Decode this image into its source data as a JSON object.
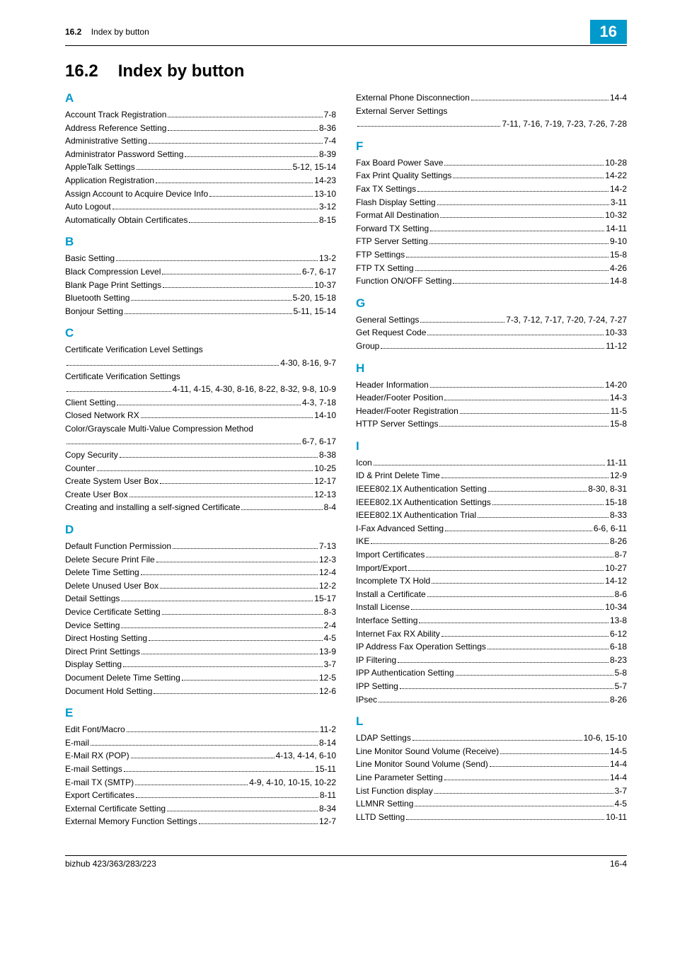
{
  "header": {
    "section_number": "16.2",
    "section_title": "Index by button",
    "chapter_number": "16"
  },
  "main_heading": {
    "number": "16.2",
    "title": "Index by button"
  },
  "left_groups": [
    {
      "letter": "A",
      "entries": [
        {
          "label": "Account Track Registration",
          "pages": "7-8"
        },
        {
          "label": "Address Reference Setting",
          "pages": "8-36"
        },
        {
          "label": "Administrative Setting",
          "pages": "7-4"
        },
        {
          "label": "Administrator Password Setting",
          "pages": "8-39"
        },
        {
          "label": "AppleTalk Settings",
          "pages": "5-12, 15-14"
        },
        {
          "label": "Application Registration",
          "pages": "14-23"
        },
        {
          "label": "Assign Account to Acquire Device Info",
          "pages": "13-10"
        },
        {
          "label": "Auto Logout",
          "pages": "3-12"
        },
        {
          "label": "Automatically Obtain Certificates",
          "pages": "8-15"
        }
      ]
    },
    {
      "letter": "B",
      "entries": [
        {
          "label": "Basic Setting",
          "pages": "13-2"
        },
        {
          "label": "Black Compression Level",
          "pages": "6-7, 6-17"
        },
        {
          "label": "Blank Page Print Settings",
          "pages": "10-37"
        },
        {
          "label": "Bluetooth Setting",
          "pages": "5-20, 15-18"
        },
        {
          "label": "Bonjour Setting",
          "pages": "5-11, 15-14"
        }
      ]
    },
    {
      "letter": "C",
      "entries": [
        {
          "label": "Certificate Verification Level Settings",
          "wrap": true,
          "cont_pages": "4-30, 8-16, 9-7"
        },
        {
          "label": "Certificate Verification Settings",
          "wrap": true,
          "cont_pre": " 4-11, 4-15, 4-30, 8-16, 8-22, 8-32, 9-8, 10-9"
        },
        {
          "label": "Client Setting",
          "pages": "4-3, 7-18"
        },
        {
          "label": "Closed Network RX",
          "pages": "14-10"
        },
        {
          "label": "Color/Grayscale Multi-Value Compression Method",
          "wrap": true,
          "cont_pages": "6-7, 6-17"
        },
        {
          "label": "Copy Security",
          "pages": "8-38"
        },
        {
          "label": "Counter",
          "pages": "10-25"
        },
        {
          "label": "Create System User Box",
          "pages": "12-17"
        },
        {
          "label": "Create User Box",
          "pages": "12-13"
        },
        {
          "label": "Creating and installing a self-signed Certificate",
          "pages": "8-4"
        }
      ]
    },
    {
      "letter": "D",
      "entries": [
        {
          "label": "Default Function Permission",
          "pages": "7-13"
        },
        {
          "label": "Delete Secure Print File",
          "pages": "12-3"
        },
        {
          "label": "Delete Time Setting",
          "pages": "12-4"
        },
        {
          "label": "Delete Unused User Box",
          "pages": "12-2"
        },
        {
          "label": "Detail Settings",
          "pages": "15-17"
        },
        {
          "label": "Device Certificate Setting",
          "pages": "8-3"
        },
        {
          "label": "Device Setting",
          "pages": "2-4"
        },
        {
          "label": "Direct Hosting Setting",
          "pages": "4-5"
        },
        {
          "label": "Direct Print Settings",
          "pages": "13-9"
        },
        {
          "label": "Display Setting",
          "pages": "3-7"
        },
        {
          "label": "Document Delete Time Setting",
          "pages": "12-5"
        },
        {
          "label": "Document Hold Setting",
          "pages": "12-6"
        }
      ]
    },
    {
      "letter": "E",
      "entries": [
        {
          "label": "Edit Font/Macro",
          "pages": "11-2"
        },
        {
          "label": "E-mail",
          "pages": "8-14"
        },
        {
          "label": "E-Mail RX (POP)",
          "pages": "4-13, 4-14, 6-10"
        },
        {
          "label": "E-mail Settings",
          "pages": "15-11"
        },
        {
          "label": "E-mail TX (SMTP)",
          "pages": " 4-9, 4-10, 10-15, 10-22"
        },
        {
          "label": "Export Certificates",
          "pages": "8-11"
        },
        {
          "label": "External Certificate Setting",
          "pages": "8-34"
        },
        {
          "label": "External Memory Function Settings",
          "pages": "12-7"
        }
      ]
    }
  ],
  "right_groups": [
    {
      "letter": "",
      "entries": [
        {
          "label": "External Phone Disconnection",
          "pages": "14-4"
        },
        {
          "label": "External Server Settings",
          "wrap": true,
          "cont_pre": " 7-11, 7-16, 7-19, 7-23, 7-26, 7-28"
        }
      ]
    },
    {
      "letter": "F",
      "entries": [
        {
          "label": "Fax Board Power Save",
          "pages": "10-28"
        },
        {
          "label": "Fax Print Quality Settings",
          "pages": "14-22"
        },
        {
          "label": "Fax TX Settings",
          "pages": "14-2"
        },
        {
          "label": "Flash Display Setting",
          "pages": "3-11"
        },
        {
          "label": "Format All Destination",
          "pages": "10-32"
        },
        {
          "label": "Forward TX Setting",
          "pages": "14-11"
        },
        {
          "label": "FTP Server Setting",
          "pages": "9-10"
        },
        {
          "label": "FTP Settings",
          "pages": "15-8"
        },
        {
          "label": "FTP TX Setting",
          "pages": "4-26"
        },
        {
          "label": "Function ON/OFF Setting",
          "pages": "14-8"
        }
      ]
    },
    {
      "letter": "G",
      "entries": [
        {
          "label": "General Settings",
          "pages": " 7-3, 7-12, 7-17, 7-20, 7-24, 7-27"
        },
        {
          "label": "Get Request Code",
          "pages": "10-33"
        },
        {
          "label": "Group",
          "pages": "11-12"
        }
      ]
    },
    {
      "letter": "H",
      "entries": [
        {
          "label": "Header Information",
          "pages": "14-20"
        },
        {
          "label": "Header/Footer Position",
          "pages": "14-3"
        },
        {
          "label": "Header/Footer Registration",
          "pages": "11-5"
        },
        {
          "label": "HTTP Server Settings",
          "pages": "15-8"
        }
      ]
    },
    {
      "letter": "I",
      "entries": [
        {
          "label": "Icon",
          "pages": "11-11"
        },
        {
          "label": "ID & Print Delete Time",
          "pages": "12-9"
        },
        {
          "label": "IEEE802.1X Authentication Setting",
          "pages": " 8-30, 8-31"
        },
        {
          "label": "IEEE802.1X Authentication Settings",
          "pages": "15-18"
        },
        {
          "label": "IEEE802.1X Authentication Trial",
          "pages": "8-33"
        },
        {
          "label": "I-Fax Advanced Setting",
          "pages": " 6-6, 6-11"
        },
        {
          "label": "IKE",
          "pages": "8-26"
        },
        {
          "label": "Import Certificates",
          "pages": "8-7"
        },
        {
          "label": "Import/Export",
          "pages": "10-27"
        },
        {
          "label": "Incomplete TX Hold",
          "pages": "14-12"
        },
        {
          "label": "Install a Certificate",
          "pages": "8-6"
        },
        {
          "label": "Install License",
          "pages": "10-34"
        },
        {
          "label": "Interface Setting",
          "pages": "13-8"
        },
        {
          "label": "Internet Fax RX Ability",
          "pages": "6-12"
        },
        {
          "label": "IP Address Fax Operation Settings",
          "pages": "6-18"
        },
        {
          "label": "IP Filtering",
          "pages": "8-23"
        },
        {
          "label": "IPP Authentication Setting",
          "pages": "5-8"
        },
        {
          "label": "IPP Setting",
          "pages": "5-7"
        },
        {
          "label": "IPsec",
          "pages": "8-26"
        }
      ]
    },
    {
      "letter": "L",
      "entries": [
        {
          "label": "LDAP Settings",
          "pages": " 10-6, 15-10"
        },
        {
          "label": "Line Monitor Sound Volume (Receive)",
          "pages": "14-5"
        },
        {
          "label": "Line Monitor Sound Volume (Send)",
          "pages": "14-4"
        },
        {
          "label": "Line Parameter Setting",
          "pages": "14-4"
        },
        {
          "label": "List Function display",
          "pages": "3-7"
        },
        {
          "label": "LLMNR Setting",
          "pages": "4-5"
        },
        {
          "label": "LLTD Setting",
          "pages": "10-11"
        }
      ]
    }
  ],
  "footer": {
    "left": "bizhub 423/363/283/223",
    "right": "16-4"
  }
}
